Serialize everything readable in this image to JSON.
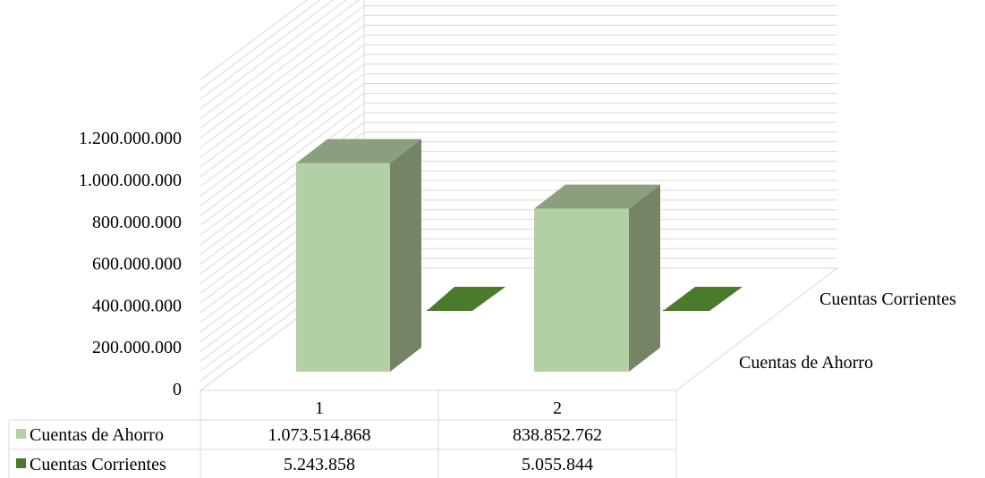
{
  "chart_data": {
    "type": "bar",
    "categories": [
      "1",
      "2"
    ],
    "series": [
      {
        "name": "Cuentas de Ahorro",
        "values": [
          1073514868,
          838852762
        ],
        "value_labels": [
          "1.073.514.868",
          "838.852.762"
        ]
      },
      {
        "name": "Cuentas Corrientes",
        "values": [
          5243858,
          5055844
        ],
        "value_labels": [
          "5.243.858",
          "5.055.844"
        ]
      }
    ],
    "y_ticks": [
      "0",
      "200.000.000",
      "400.000.000",
      "600.000.000",
      "800.000.000",
      "1.000.000.000",
      "1.200.000.000"
    ],
    "ylim": [
      0,
      1600000000
    ],
    "grid": true,
    "style": "3d",
    "data_table": true,
    "colors": {
      "ahorro_front": "#b3cfa5",
      "ahorro_side": "#768466",
      "ahorro_top": "#8b9e7d",
      "corrientes": "#4a7a2c",
      "grid": "#d9d9d9"
    }
  }
}
